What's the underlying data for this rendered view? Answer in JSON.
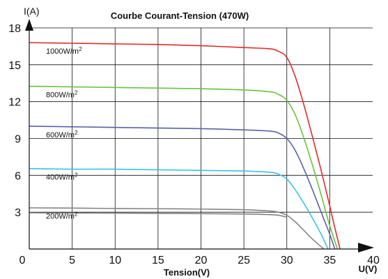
{
  "chart_data": {
    "type": "line",
    "title": "Courbe Courant-Tension (470W)",
    "xlabel": "Tension(V)",
    "x_axis_end_label": "U(V)",
    "ylabel": "I(A)",
    "xlim": [
      0,
      40
    ],
    "ylim": [
      0,
      18
    ],
    "x_ticks": [
      "0",
      "5",
      "10",
      "15",
      "20",
      "25",
      "30",
      "35",
      "40"
    ],
    "y_ticks": [
      "3",
      "6",
      "9",
      "12",
      "15",
      "18"
    ],
    "grid": true,
    "series": [
      {
        "name": "1000W/m²",
        "color": "#e32a2a",
        "x": [
          0,
          5,
          10,
          15,
          20,
          25,
          28,
          29,
          30,
          31,
          32,
          33,
          34,
          35,
          35.5,
          36.2
        ],
        "y": [
          16.8,
          16.75,
          16.7,
          16.65,
          16.55,
          16.4,
          16.3,
          16.1,
          15.6,
          14.0,
          11.7,
          9.1,
          6.4,
          3.5,
          2.0,
          0
        ]
      },
      {
        "name": "800W/m²",
        "color": "#6ac13f",
        "x": [
          0,
          5,
          10,
          15,
          20,
          25,
          28,
          29,
          30,
          31,
          32,
          33,
          34,
          35,
          35.9
        ],
        "y": [
          13.25,
          13.2,
          13.15,
          13.1,
          13.05,
          12.95,
          12.8,
          12.6,
          12.1,
          10.9,
          9.0,
          6.8,
          4.4,
          1.9,
          0
        ]
      },
      {
        "name": "600W/m²",
        "color": "#5762a8",
        "x": [
          0,
          5,
          10,
          15,
          20,
          25,
          28,
          29,
          30,
          31,
          32,
          33,
          34,
          35,
          35.6
        ],
        "y": [
          10.0,
          9.95,
          9.9,
          9.85,
          9.8,
          9.7,
          9.6,
          9.45,
          9.0,
          8.0,
          6.5,
          4.8,
          3.0,
          1.2,
          0
        ]
      },
      {
        "name": "400W/m²",
        "color": "#3ac2e3",
        "x": [
          0,
          5,
          10,
          15,
          20,
          25,
          28,
          29,
          30,
          31,
          32,
          33,
          34,
          34.8
        ],
        "y": [
          6.55,
          6.5,
          6.5,
          6.45,
          6.4,
          6.35,
          6.25,
          6.1,
          5.7,
          4.8,
          3.7,
          2.5,
          1.2,
          0
        ]
      },
      {
        "name": "200W/m²",
        "color": "#848484",
        "x": [
          0,
          5,
          10,
          15,
          20,
          25,
          28,
          29,
          30,
          31,
          32,
          33,
          34.3
        ],
        "y": [
          3.35,
          3.33,
          3.3,
          3.28,
          3.25,
          3.2,
          3.1,
          3.0,
          2.75,
          2.2,
          1.5,
          0.8,
          0
        ]
      },
      {
        "name": "",
        "color": "#848484",
        "x": [
          0,
          5,
          10,
          15,
          20,
          25,
          28,
          29,
          30
        ],
        "y": [
          2.95,
          2.93,
          2.92,
          2.9,
          2.88,
          2.85,
          2.8,
          2.75,
          2.6
        ]
      }
    ]
  },
  "series_labels": [
    {
      "base": "1000W/m",
      "sup": "2"
    },
    {
      "base": "800W/m",
      "sup": "2"
    },
    {
      "base": "600W/m",
      "sup": "2"
    },
    {
      "base": "400W/m",
      "sup": "2"
    },
    {
      "base": "200W/m",
      "sup": "2"
    }
  ],
  "y_axis_title": {
    "letter": "I",
    "rest": "(A)"
  }
}
